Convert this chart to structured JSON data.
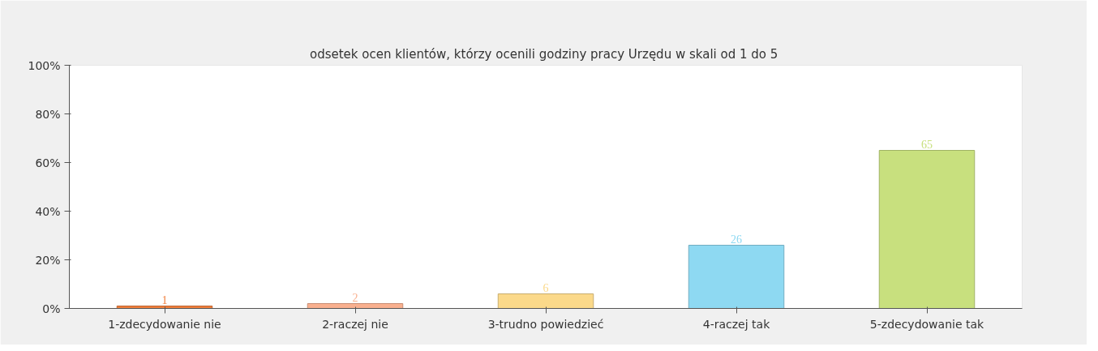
{
  "chart_data": {
    "type": "bar",
    "title": "odsetek ocen klientów, którzy ocenili godziny pracy Urzędu  w skali od 1 do 5",
    "categories": [
      "1-zdecydowanie nie",
      "2-raczej nie",
      "3-trudno powiedzieć",
      "4-raczej tak",
      "5-zdecydowanie tak"
    ],
    "values": [
      1,
      2,
      6,
      26,
      65
    ],
    "colors": [
      "#f07f3c",
      "#f9b08f",
      "#fbd98a",
      "#8ed9f2",
      "#c8e07e"
    ],
    "ylim": [
      0,
      100
    ],
    "yticks": [
      {
        "value": 0,
        "label": "0%"
      },
      {
        "value": 20,
        "label": "20%"
      },
      {
        "value": 40,
        "label": "40%"
      },
      {
        "value": 60,
        "label": "60%"
      },
      {
        "value": 80,
        "label": "80%"
      },
      {
        "value": 100,
        "label": "100%"
      }
    ],
    "data_labels": true
  }
}
